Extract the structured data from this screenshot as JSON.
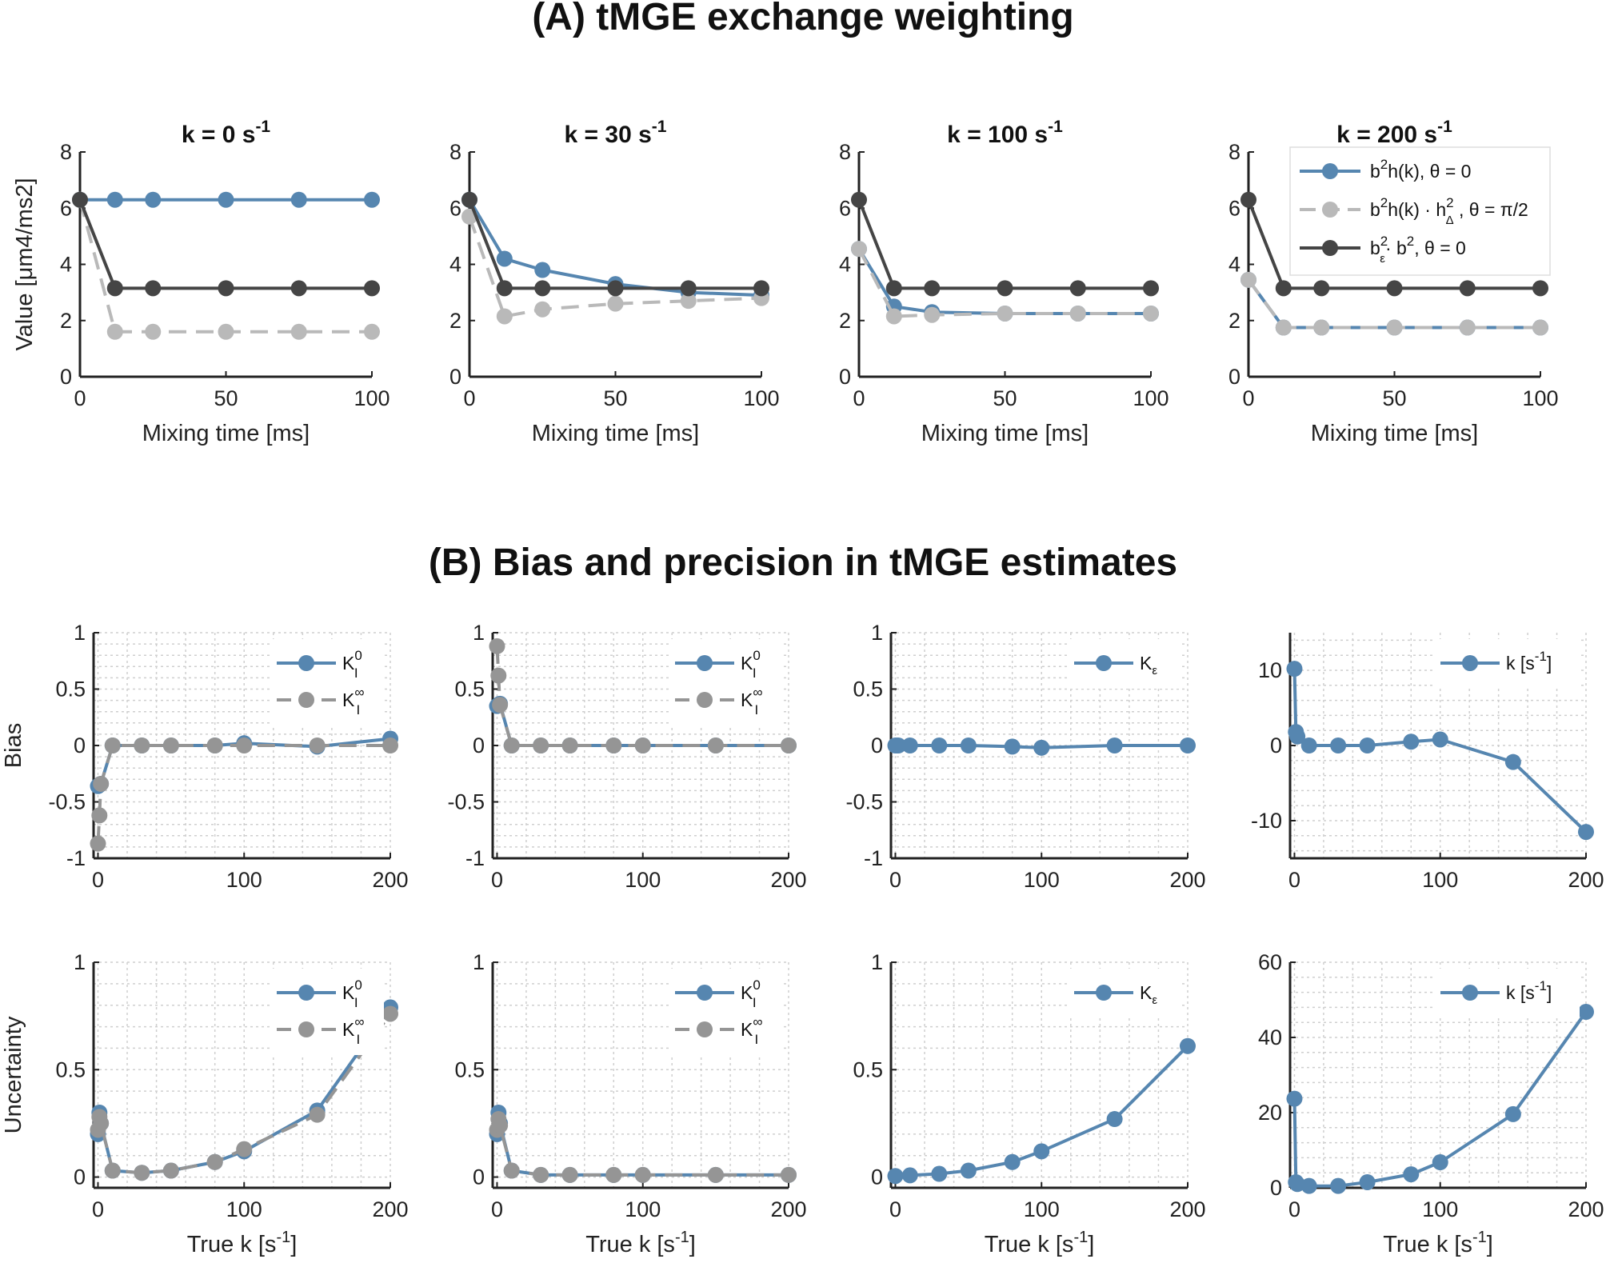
{
  "titles": {
    "section_a": "(A) tMGE exchange weighting",
    "section_b": "(B) Bias and precision in tMGE estimates"
  },
  "colors": {
    "blue": "#5686b0",
    "lightgray": "#b9b9b9",
    "darkgray": "#454545",
    "midgray": "#959595"
  },
  "chart_data": [
    {
      "id": "a1",
      "type": "line",
      "title": "k = 0 s",
      "title_sup": "-1",
      "xlabel": "Mixing time [ms]",
      "ylabel": "Value [μm4/ms2]",
      "xlim": [
        0,
        100
      ],
      "ylim": [
        0,
        8
      ],
      "xticks": [
        0,
        50,
        100
      ],
      "xtick_labels": [
        "0",
        "50",
        "100"
      ],
      "yticks": [
        0,
        2,
        4,
        6,
        8
      ],
      "ytick_labels": [
        "0",
        "2",
        "4",
        "6",
        "8"
      ],
      "x": [
        0,
        12,
        25,
        50,
        75,
        100
      ],
      "series": [
        {
          "name": "b2h(k), θ = 0",
          "style": "blue",
          "values": [
            6.3,
            6.3,
            6.3,
            6.3,
            6.3,
            6.3
          ]
        },
        {
          "name": "b2h(k) · h2Δ, θ = π/2",
          "style": "lightgray",
          "values": [
            6.3,
            1.6,
            1.6,
            1.6,
            1.6,
            1.6
          ]
        },
        {
          "name": "b2ε · b2, θ = 0",
          "style": "darkgray",
          "values": [
            6.3,
            3.15,
            3.15,
            3.15,
            3.15,
            3.15
          ]
        }
      ]
    },
    {
      "id": "a2",
      "type": "line",
      "title": "k = 30 s",
      "title_sup": "-1",
      "xlabel": "Mixing time [ms]",
      "xlim": [
        0,
        100
      ],
      "ylim": [
        0,
        8
      ],
      "xticks": [
        0,
        50,
        100
      ],
      "xtick_labels": [
        "0",
        "50",
        "100"
      ],
      "yticks": [
        0,
        2,
        4,
        6,
        8
      ],
      "ytick_labels": [
        "0",
        "2",
        "4",
        "6",
        "8"
      ],
      "x": [
        0,
        12,
        25,
        50,
        75,
        100
      ],
      "series": [
        {
          "name": "b2h(k), θ = 0",
          "style": "blue",
          "values": [
            6.3,
            4.2,
            3.8,
            3.3,
            3.0,
            2.9
          ]
        },
        {
          "name": "b2h(k) · h2Δ, θ = π/2",
          "style": "lightgray",
          "values": [
            5.7,
            2.15,
            2.4,
            2.6,
            2.7,
            2.8
          ]
        },
        {
          "name": "b2ε · b2, θ = 0",
          "style": "darkgray",
          "values": [
            6.3,
            3.15,
            3.15,
            3.15,
            3.15,
            3.15
          ]
        }
      ]
    },
    {
      "id": "a3",
      "type": "line",
      "title": "k = 100 s",
      "title_sup": "-1",
      "xlabel": "Mixing time [ms]",
      "xlim": [
        0,
        100
      ],
      "ylim": [
        0,
        8
      ],
      "xticks": [
        0,
        50,
        100
      ],
      "xtick_labels": [
        "0",
        "50",
        "100"
      ],
      "yticks": [
        0,
        2,
        4,
        6,
        8
      ],
      "ytick_labels": [
        "0",
        "2",
        "4",
        "6",
        "8"
      ],
      "x": [
        0,
        12,
        25,
        50,
        75,
        100
      ],
      "series": [
        {
          "name": "b2h(k), θ = 0",
          "style": "blue",
          "values": [
            4.55,
            2.5,
            2.3,
            2.25,
            2.25,
            2.25
          ]
        },
        {
          "name": "b2h(k) · h2Δ, θ = π/2",
          "style": "lightgray",
          "values": [
            4.55,
            2.15,
            2.2,
            2.25,
            2.25,
            2.25
          ]
        },
        {
          "name": "b2ε · b2, θ = 0",
          "style": "darkgray",
          "values": [
            6.3,
            3.15,
            3.15,
            3.15,
            3.15,
            3.15
          ]
        }
      ]
    },
    {
      "id": "a4",
      "type": "line",
      "title": "k = 200 s",
      "title_sup": "-1",
      "xlabel": "Mixing time [ms]",
      "xlim": [
        0,
        100
      ],
      "ylim": [
        0,
        8
      ],
      "xticks": [
        0,
        50,
        100
      ],
      "xtick_labels": [
        "0",
        "50",
        "100"
      ],
      "yticks": [
        0,
        2,
        4,
        6,
        8
      ],
      "ytick_labels": [
        "0",
        "2",
        "4",
        "6",
        "8"
      ],
      "x": [
        0,
        12,
        25,
        50,
        75,
        100
      ],
      "series": [
        {
          "name": "b2h(k), θ = 0",
          "style": "blue",
          "values": [
            3.45,
            1.75,
            1.75,
            1.75,
            1.75,
            1.75
          ]
        },
        {
          "name": "b2h(k) · h2Δ, θ = π/2",
          "style": "lightgray",
          "values": [
            3.45,
            1.75,
            1.75,
            1.75,
            1.75,
            1.75
          ]
        },
        {
          "name": "b2ε · b2, θ = 0",
          "style": "darkgray",
          "values": [
            6.3,
            3.15,
            3.15,
            3.15,
            3.15,
            3.15
          ]
        }
      ],
      "legend": {
        "position": "top-right",
        "entries": [
          {
            "style": "blue",
            "base": "b",
            "sup1": "2",
            "mid": "h(k), ",
            "tail": "θ = 0"
          },
          {
            "style": "lightgray",
            "base": "b",
            "sup1": "2",
            "mid": "h(k) · h",
            "sup2": "2",
            "sub2": "Δ",
            "tail": " , θ = π/2"
          },
          {
            "style": "darkgray",
            "base": "b",
            "sup1": "2",
            "sub1": "ε",
            "mid": "· b",
            "sup2": "2",
            "tail": ", θ = 0"
          }
        ]
      }
    },
    {
      "id": "b1",
      "type": "line",
      "ylabel": "Bias",
      "xlim": [
        -3,
        200
      ],
      "ylim": [
        -1,
        1
      ],
      "xticks": [
        0,
        100,
        200
      ],
      "xtick_labels": [
        "0",
        "100",
        "200"
      ],
      "yticks": [
        -1,
        -0.5,
        0,
        0.5,
        1
      ],
      "ytick_labels": [
        "-1",
        "-0.5",
        "0",
        "0.5",
        "1"
      ],
      "x": [
        0,
        1,
        2,
        10,
        30,
        50,
        80,
        100,
        150,
        200
      ],
      "series": [
        {
          "name": "K_I^0",
          "style": "blue",
          "values": [
            -0.36,
            -0.35,
            -0.34,
            0.0,
            0.0,
            0.0,
            0.0,
            0.02,
            -0.01,
            0.06
          ]
        },
        {
          "name": "K_I^∞",
          "style": "midgray",
          "values": [
            -0.87,
            -0.62,
            -0.34,
            0.0,
            0.0,
            0.0,
            0.0,
            0.0,
            0.0,
            0.0
          ]
        }
      ],
      "legend": {
        "position": "top-right",
        "entries": [
          {
            "style": "blue",
            "base": "K",
            "sub": "I",
            "sup": "0"
          },
          {
            "style": "midgray",
            "base": "K",
            "sub": "I",
            "sup": "∞"
          }
        ]
      }
    },
    {
      "id": "b2",
      "type": "line",
      "xlim": [
        -3,
        200
      ],
      "ylim": [
        -1,
        1
      ],
      "xticks": [
        0,
        100,
        200
      ],
      "xtick_labels": [
        "0",
        "100",
        "200"
      ],
      "yticks": [
        -1,
        -0.5,
        0,
        0.5,
        1
      ],
      "ytick_labels": [
        "-1",
        "-0.5",
        "0",
        "0.5",
        "1"
      ],
      "x": [
        0,
        1,
        2,
        10,
        30,
        50,
        80,
        100,
        150,
        200
      ],
      "series": [
        {
          "name": "K_I^0",
          "style": "blue",
          "values": [
            0.35,
            0.36,
            0.37,
            0.0,
            0.0,
            0.0,
            0.0,
            0.0,
            0.0,
            0.0
          ]
        },
        {
          "name": "K_I^∞",
          "style": "midgray",
          "values": [
            0.88,
            0.62,
            0.36,
            0.0,
            0.0,
            0.0,
            0.0,
            0.0,
            0.0,
            0.0
          ]
        }
      ],
      "legend": {
        "position": "top-right",
        "entries": [
          {
            "style": "blue",
            "base": "K",
            "sub": "I",
            "sup": "0"
          },
          {
            "style": "midgray",
            "base": "K",
            "sub": "I",
            "sup": "∞"
          }
        ]
      }
    },
    {
      "id": "b3",
      "type": "line",
      "xlim": [
        -3,
        200
      ],
      "ylim": [
        -1,
        1
      ],
      "xticks": [
        0,
        100,
        200
      ],
      "xtick_labels": [
        "0",
        "100",
        "200"
      ],
      "yticks": [
        -1,
        -0.5,
        0,
        0.5,
        1
      ],
      "ytick_labels": [
        "-1",
        "-0.5",
        "0",
        "0.5",
        "1"
      ],
      "x": [
        0,
        1,
        2,
        10,
        30,
        50,
        80,
        100,
        150,
        200
      ],
      "series": [
        {
          "name": "K_ε",
          "style": "blue",
          "values": [
            0.0,
            0.0,
            0.0,
            0.0,
            0.0,
            0.0,
            -0.01,
            -0.02,
            0.0,
            0.0
          ]
        }
      ],
      "legend": {
        "position": "top-right",
        "entries": [
          {
            "style": "blue",
            "base": "K",
            "sub": "ε"
          }
        ]
      }
    },
    {
      "id": "b4",
      "type": "line",
      "xlim": [
        -3,
        200
      ],
      "ylim": [
        -15,
        15
      ],
      "xticks": [
        0,
        100,
        200
      ],
      "xtick_labels": [
        "0",
        "100",
        "200"
      ],
      "yticks": [
        -10,
        0,
        10
      ],
      "ytick_labels": [
        "-10",
        "0",
        "10"
      ],
      "x": [
        0,
        1,
        2,
        10,
        30,
        50,
        80,
        100,
        150,
        200
      ],
      "series": [
        {
          "name": "k [s-1]",
          "style": "blue",
          "values": [
            10.2,
            1.8,
            1.2,
            0.0,
            0.0,
            0.0,
            0.5,
            0.8,
            -2.2,
            -11.5
          ]
        }
      ],
      "legend": {
        "position": "top-right",
        "entries": [
          {
            "style": "blue",
            "base": "k [s",
            "sup": "-1",
            "tail": "]"
          }
        ]
      }
    },
    {
      "id": "b5",
      "type": "line",
      "ylabel": "Uncertainty",
      "xlabel": "True k [s",
      "xlabel_sup": "-1",
      "xlabel_tail": "]",
      "xlim": [
        -3,
        200
      ],
      "ylim": [
        -0.05,
        1
      ],
      "xticks": [
        0,
        100,
        200
      ],
      "xtick_labels": [
        "0",
        "100",
        "200"
      ],
      "yticks": [
        0,
        0.5,
        1
      ],
      "ytick_labels": [
        "0",
        "0.5",
        "1"
      ],
      "x": [
        0,
        1,
        2,
        10,
        30,
        50,
        80,
        100,
        150,
        200
      ],
      "series": [
        {
          "name": "K_I^0",
          "style": "blue",
          "values": [
            0.2,
            0.3,
            0.25,
            0.03,
            0.02,
            0.03,
            0.07,
            0.12,
            0.31,
            0.79
          ]
        },
        {
          "name": "K_I^∞",
          "style": "midgray",
          "values": [
            0.22,
            0.28,
            0.25,
            0.03,
            0.02,
            0.03,
            0.07,
            0.13,
            0.29,
            0.76
          ]
        }
      ],
      "legend": {
        "position": "top-right",
        "entries": [
          {
            "style": "blue",
            "base": "K",
            "sub": "I",
            "sup": "0"
          },
          {
            "style": "midgray",
            "base": "K",
            "sub": "I",
            "sup": "∞"
          }
        ]
      }
    },
    {
      "id": "b6",
      "type": "line",
      "xlabel": "True k [s",
      "xlabel_sup": "-1",
      "xlabel_tail": "]",
      "xlim": [
        -3,
        200
      ],
      "ylim": [
        -0.05,
        1
      ],
      "xticks": [
        0,
        100,
        200
      ],
      "xtick_labels": [
        "0",
        "100",
        "200"
      ],
      "yticks": [
        0,
        0.5,
        1
      ],
      "ytick_labels": [
        "0",
        "0.5",
        "1"
      ],
      "x": [
        0,
        1,
        2,
        10,
        30,
        50,
        80,
        100,
        150,
        200
      ],
      "series": [
        {
          "name": "K_I^0",
          "style": "blue",
          "values": [
            0.2,
            0.3,
            0.25,
            0.03,
            0.01,
            0.01,
            0.01,
            0.01,
            0.01,
            0.01
          ]
        },
        {
          "name": "K_I^∞",
          "style": "midgray",
          "values": [
            0.22,
            0.27,
            0.24,
            0.03,
            0.01,
            0.01,
            0.01,
            0.01,
            0.01,
            0.01
          ]
        }
      ],
      "legend": {
        "position": "top-right",
        "entries": [
          {
            "style": "blue",
            "base": "K",
            "sub": "I",
            "sup": "0"
          },
          {
            "style": "midgray",
            "base": "K",
            "sub": "I",
            "sup": "∞"
          }
        ]
      }
    },
    {
      "id": "b7",
      "type": "line",
      "xlabel": "True k [s",
      "xlabel_sup": "-1",
      "xlabel_tail": "]",
      "xlim": [
        -3,
        200
      ],
      "ylim": [
        -0.05,
        1
      ],
      "xticks": [
        0,
        100,
        200
      ],
      "xtick_labels": [
        "0",
        "100",
        "200"
      ],
      "yticks": [
        0,
        0.5,
        1
      ],
      "ytick_labels": [
        "0",
        "0.5",
        "1"
      ],
      "x": [
        0,
        10,
        30,
        50,
        80,
        100,
        150,
        200
      ],
      "series": [
        {
          "name": "K_ε",
          "style": "blue",
          "values": [
            0.005,
            0.008,
            0.015,
            0.03,
            0.07,
            0.12,
            0.27,
            0.61
          ]
        }
      ],
      "legend": {
        "position": "top-right",
        "entries": [
          {
            "style": "blue",
            "base": "K",
            "sub": "ε"
          }
        ]
      }
    },
    {
      "id": "b8",
      "type": "line",
      "xlabel": "True k [s",
      "xlabel_sup": "-1",
      "xlabel_tail": "]",
      "xlim": [
        -3,
        200
      ],
      "ylim": [
        0,
        60
      ],
      "xticks": [
        0,
        100,
        200
      ],
      "xtick_labels": [
        "0",
        "100",
        "200"
      ],
      "yticks": [
        0,
        20,
        40,
        60
      ],
      "ytick_labels": [
        "0",
        "20",
        "40",
        "60"
      ],
      "x": [
        0,
        1,
        2,
        10,
        30,
        50,
        80,
        100,
        150,
        200
      ],
      "series": [
        {
          "name": "k [s-1]",
          "style": "blue",
          "values": [
            23.7,
            1.5,
            1.0,
            0.5,
            0.5,
            1.5,
            3.6,
            6.8,
            19.6,
            46.8
          ]
        }
      ],
      "legend": {
        "position": "top-right",
        "entries": [
          {
            "style": "blue",
            "base": "k [s",
            "sup": "-1",
            "tail": "]"
          }
        ]
      }
    }
  ]
}
